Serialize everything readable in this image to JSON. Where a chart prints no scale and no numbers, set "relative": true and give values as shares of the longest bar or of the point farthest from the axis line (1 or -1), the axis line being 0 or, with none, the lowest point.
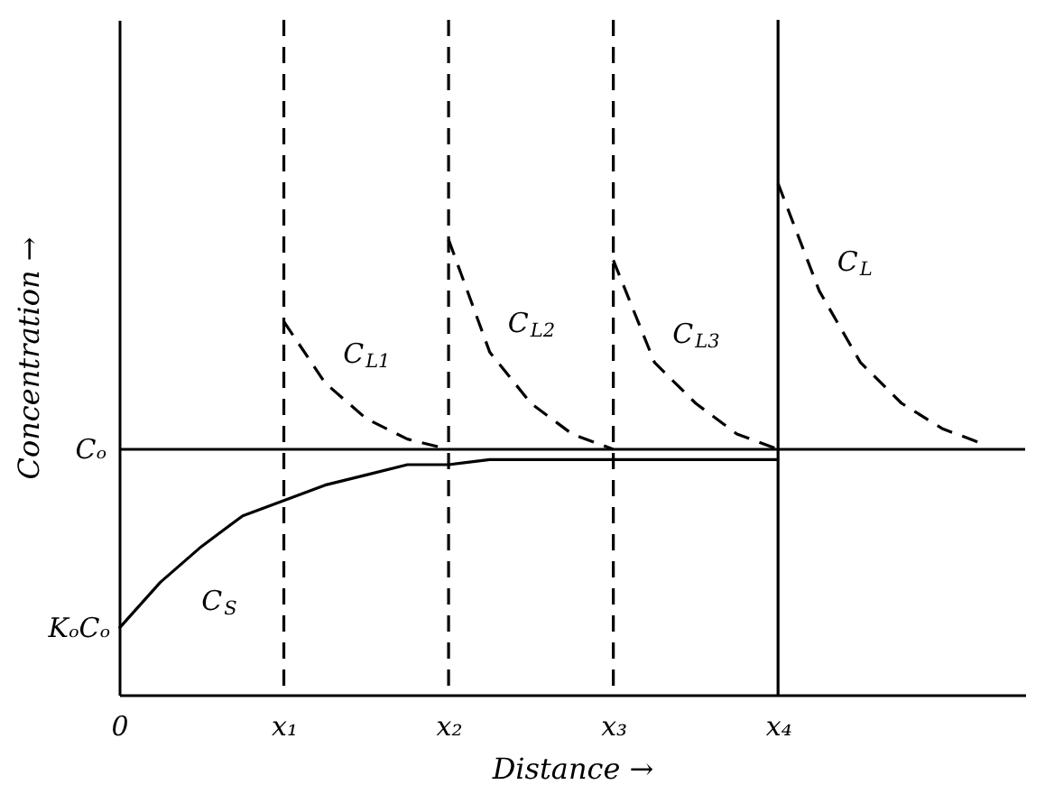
{
  "chart_data": {
    "type": "line",
    "relative": true,
    "xlabel": "Distance →",
    "ylabel": "Concentration →",
    "categories": [
      "0",
      null,
      null,
      null,
      "x₁",
      null,
      null,
      null,
      "x₂",
      null,
      null,
      null,
      "x₃",
      null,
      null,
      null,
      "x₄",
      null,
      null,
      null,
      null,
      null,
      null
    ],
    "ref_lines": [
      {
        "axis": "y",
        "value": 0.48,
        "label": "Cₒ",
        "color": "#000000",
        "line_style": "solid"
      },
      {
        "axis": "x",
        "value": "x₁",
        "color": "#000000",
        "line_style": "dashed"
      },
      {
        "axis": "x",
        "value": "x₂",
        "color": "#000000",
        "line_style": "dashed"
      },
      {
        "axis": "x",
        "value": "x₃",
        "color": "#000000",
        "line_style": "dashed"
      },
      {
        "axis": "x",
        "value": "x₄",
        "color": "#000000",
        "line_style": "solid"
      }
    ],
    "annotations": [
      {
        "text": "KₒCₒ",
        "x": "0",
        "y": 0.13
      }
    ],
    "series": [
      {
        "name": "C$_{S}$",
        "color": "#000000",
        "line_style": "solid",
        "values": [
          0.13,
          0.22,
          0.29,
          0.35,
          0.38,
          0.41,
          0.43,
          0.45,
          0.45,
          0.46,
          0.46,
          0.46,
          0.46,
          0.46,
          0.46,
          0.46,
          0.46,
          null,
          null,
          null,
          null,
          null,
          null
        ]
      },
      {
        "name": "C$_{L1}$",
        "color": "#000000",
        "line_style": "dashed",
        "values": [
          null,
          null,
          null,
          null,
          0.73,
          0.61,
          0.54,
          0.5,
          0.48,
          null,
          null,
          null,
          null,
          null,
          null,
          null,
          null,
          null,
          null,
          null,
          null,
          null,
          null
        ]
      },
      {
        "name": "C$_{L2}$",
        "color": "#000000",
        "line_style": "dashed",
        "values": [
          null,
          null,
          null,
          null,
          null,
          null,
          null,
          null,
          0.89,
          0.67,
          0.57,
          0.51,
          0.48,
          null,
          null,
          null,
          null,
          null,
          null,
          null,
          null,
          null,
          null
        ]
      },
      {
        "name": "C$_{L3}$",
        "color": "#000000",
        "line_style": "dashed",
        "values": [
          null,
          null,
          null,
          null,
          null,
          null,
          null,
          null,
          null,
          null,
          null,
          null,
          0.85,
          0.65,
          0.57,
          0.51,
          0.48,
          null,
          null,
          null,
          null,
          null,
          null
        ]
      },
      {
        "name": "C$_{L}$",
        "color": "#000000",
        "line_style": "dashed",
        "values": [
          null,
          null,
          null,
          null,
          null,
          null,
          null,
          null,
          null,
          null,
          null,
          null,
          null,
          null,
          null,
          null,
          1,
          0.79,
          0.65,
          0.57,
          0.52,
          0.49,
          null
        ]
      }
    ]
  }
}
